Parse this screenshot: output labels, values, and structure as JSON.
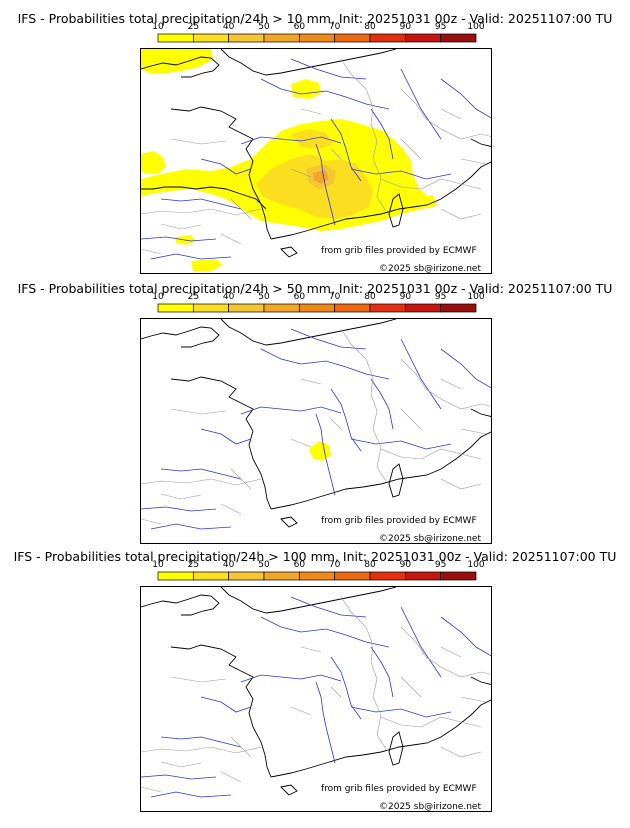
{
  "colorbar": {
    "ticks": [
      "10",
      "25",
      "40",
      "50",
      "60",
      "70",
      "80",
      "90",
      "95",
      "100"
    ],
    "colors": [
      "#ffff00",
      "#fbde1f",
      "#f6c533",
      "#f2a627",
      "#ee8a1c",
      "#eb6a12",
      "#e32f0e",
      "#c4160e",
      "#9a0e0e",
      "#5e0a0a"
    ]
  },
  "panels": [
    {
      "title": "IFS - Probabilities total precipitation/24h > 10 mm, Init: 20251031 00z - Valid: 20251107:00 TU",
      "threshold_mm": 10
    },
    {
      "title": "IFS - Probabilities total precipitation/24h > 50 mm, Init: 20251031 00z - Valid: 20251107:00 TU",
      "threshold_mm": 50
    },
    {
      "title": "IFS - Probabilities total precipitation/24h > 100 mm, Init: 20251031 00z - Valid: 20251107:00 TU",
      "threshold_mm": 100
    }
  ],
  "credits": {
    "source": "from grib files provided by ECMWF",
    "copyright": "©2025 sb@irizone.net"
  },
  "colors": {
    "coast": "#000000",
    "rivers": "#2b35d8",
    "borders": "#9a9a9a",
    "yellow": "#ffff00",
    "yellow_orange": "#fbde1f",
    "orange": "#f2a627"
  }
}
